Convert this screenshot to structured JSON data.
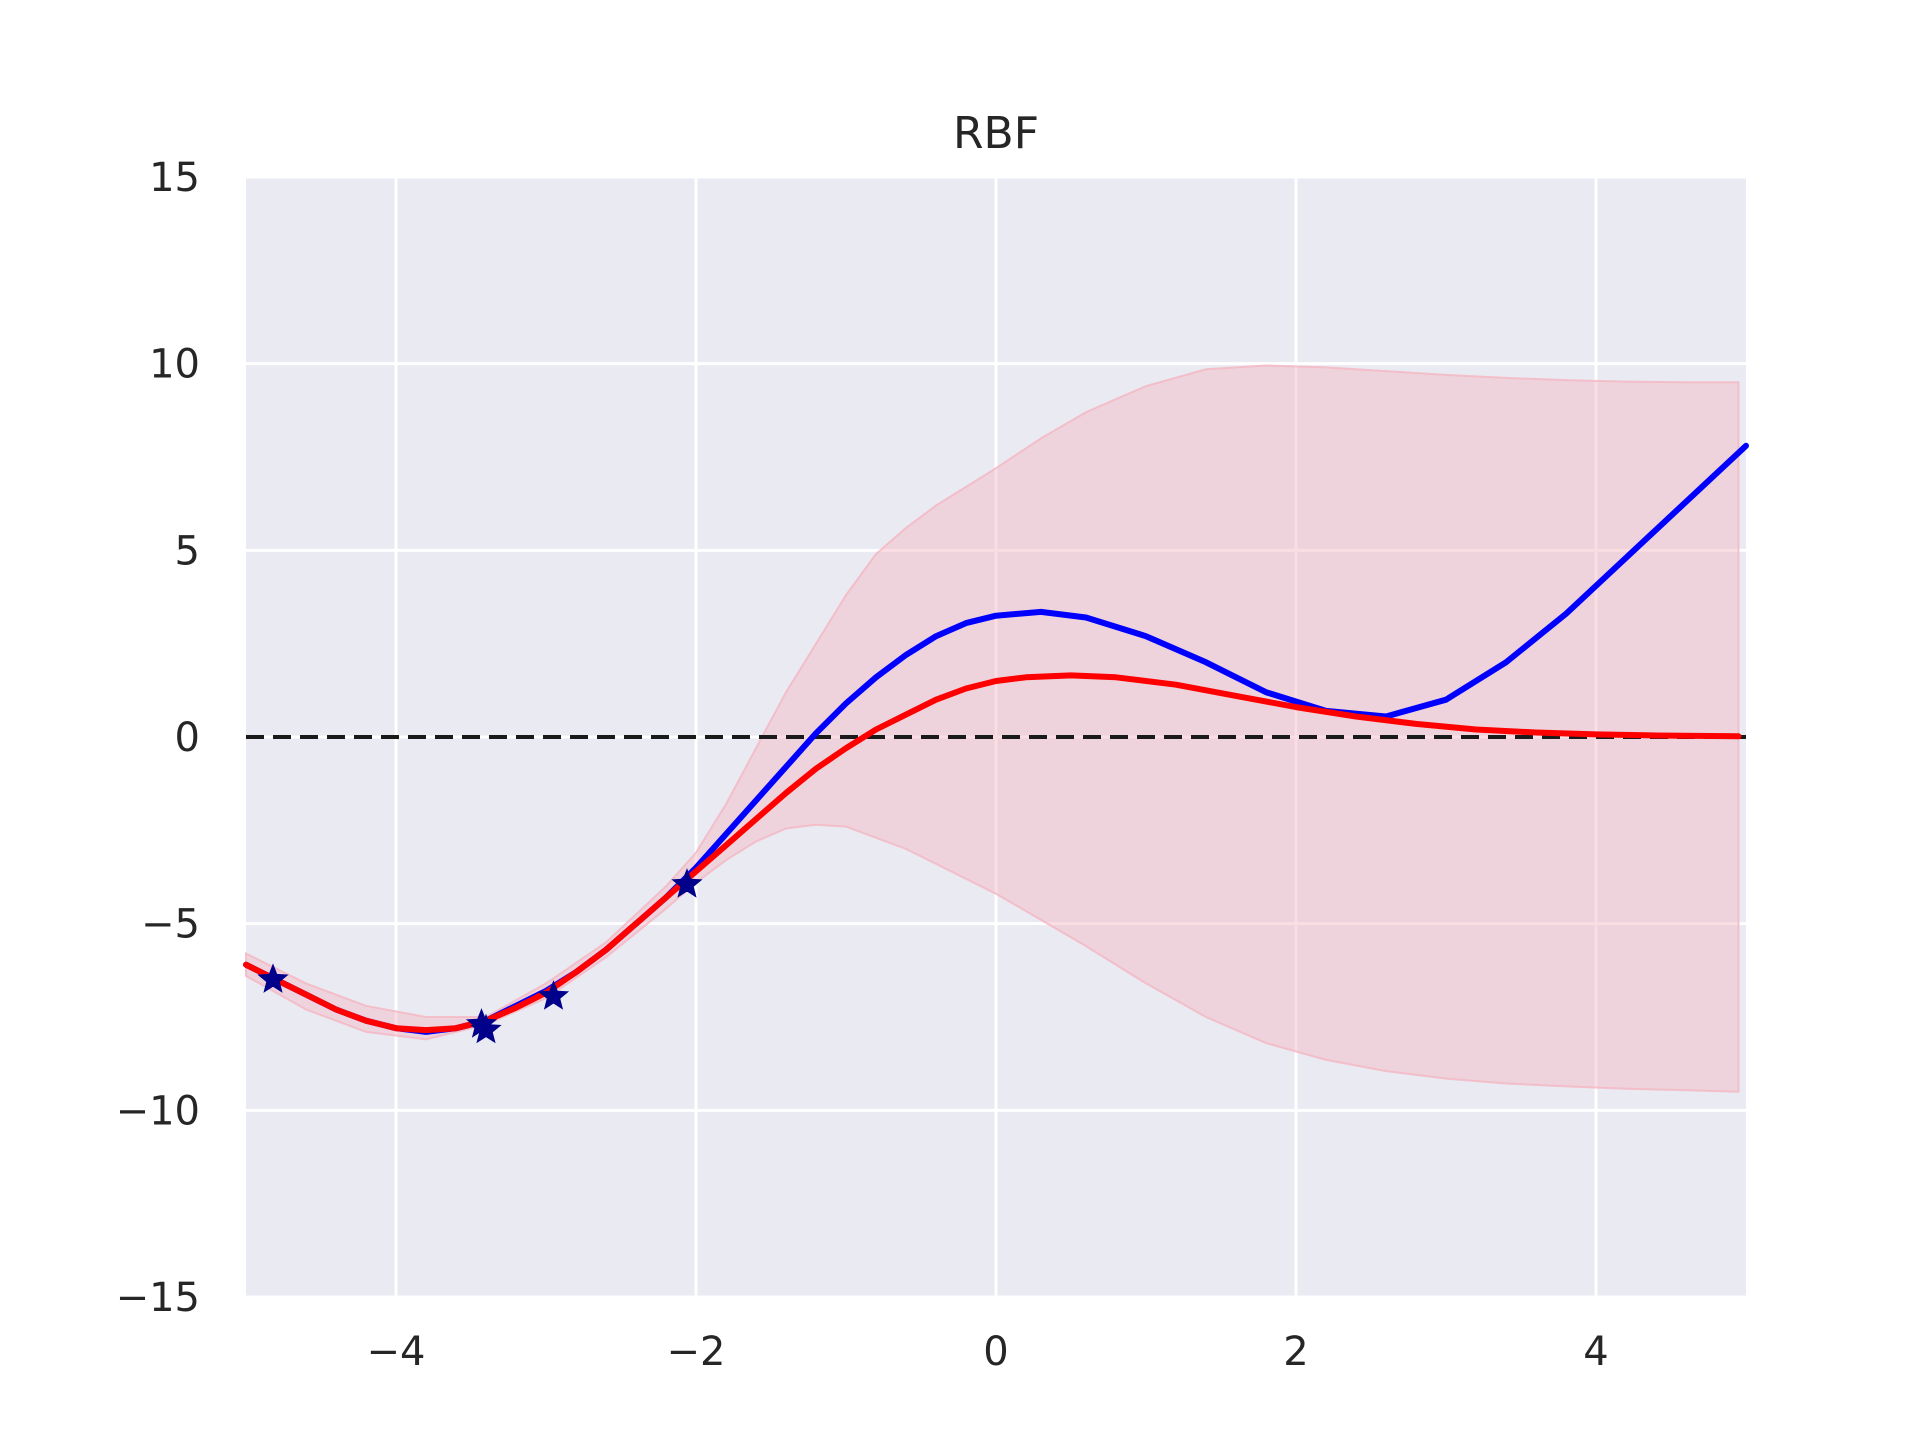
{
  "chart_data": {
    "type": "line",
    "title": "RBF",
    "xlabel": "",
    "ylabel": "",
    "xlim": [
      -5,
      5
    ],
    "ylim": [
      -15,
      15
    ],
    "xticks": [
      -4,
      -2,
      0,
      2,
      4
    ],
    "xtick_labels": [
      "−4",
      "−2",
      "0",
      "2",
      "4"
    ],
    "yticks": [
      15,
      10,
      5,
      0,
      -5,
      -10,
      -15
    ],
    "ytick_labels": [
      "15",
      "10",
      "5",
      "0",
      "−5",
      "−10",
      "−15"
    ],
    "grid": true,
    "background_color": "#EAEAF2",
    "reference_line": {
      "y": 0,
      "style": "dashed",
      "color": "#1a1a1a"
    },
    "series": [
      {
        "kind": "line",
        "color": "#0000FF",
        "x": [
          -5.0,
          -4.8,
          -4.6,
          -4.4,
          -4.2,
          -4.0,
          -3.8,
          -3.6,
          -3.4,
          -3.2,
          -3.0,
          -2.8,
          -2.6,
          -2.4,
          -2.2,
          -2.0,
          -1.8,
          -1.6,
          -1.4,
          -1.2,
          -1.0,
          -0.8,
          -0.6,
          -0.4,
          -0.2,
          0.0,
          0.3,
          0.6,
          1.0,
          1.4,
          1.8,
          2.2,
          2.6,
          3.0,
          3.4,
          3.8,
          4.2,
          4.6,
          5.0
        ],
        "y": [
          -6.1,
          -6.5,
          -6.9,
          -7.3,
          -7.6,
          -7.8,
          -7.9,
          -7.8,
          -7.6,
          -7.2,
          -6.8,
          -6.3,
          -5.7,
          -5.0,
          -4.3,
          -3.5,
          -2.6,
          -1.7,
          -0.8,
          0.1,
          0.9,
          1.6,
          2.2,
          2.7,
          3.05,
          3.25,
          3.35,
          3.2,
          2.7,
          2.0,
          1.2,
          0.7,
          0.55,
          1.0,
          2.0,
          3.3,
          4.8,
          6.3,
          7.8
        ]
      },
      {
        "kind": "mean",
        "color": "#FF0000",
        "x": [
          -5.0,
          -4.8,
          -4.6,
          -4.4,
          -4.2,
          -4.0,
          -3.8,
          -3.6,
          -3.4,
          -3.2,
          -3.0,
          -2.8,
          -2.6,
          -2.4,
          -2.2,
          -2.0,
          -1.8,
          -1.6,
          -1.4,
          -1.2,
          -1.0,
          -0.8,
          -0.6,
          -0.4,
          -0.2,
          0.0,
          0.2,
          0.5,
          0.8,
          1.2,
          1.6,
          2.0,
          2.4,
          2.8,
          3.2,
          3.6,
          4.0,
          4.4,
          4.95
        ],
        "y": [
          -6.1,
          -6.5,
          -6.9,
          -7.3,
          -7.6,
          -7.8,
          -7.85,
          -7.8,
          -7.6,
          -7.25,
          -6.85,
          -6.3,
          -5.7,
          -5.0,
          -4.3,
          -3.6,
          -2.9,
          -2.2,
          -1.5,
          -0.85,
          -0.3,
          0.2,
          0.6,
          1.0,
          1.3,
          1.5,
          1.6,
          1.65,
          1.6,
          1.4,
          1.1,
          0.8,
          0.55,
          0.35,
          0.2,
          0.12,
          0.07,
          0.04,
          0.02
        ]
      },
      {
        "kind": "band",
        "color": "#F4B6C2",
        "x": [
          -5.0,
          -4.6,
          -4.2,
          -3.8,
          -3.4,
          -3.0,
          -2.6,
          -2.2,
          -2.0,
          -1.8,
          -1.6,
          -1.4,
          -1.2,
          -1.0,
          -0.8,
          -0.6,
          -0.4,
          -0.2,
          0.0,
          0.3,
          0.6,
          1.0,
          1.4,
          1.8,
          2.2,
          2.6,
          3.0,
          3.4,
          3.8,
          4.2,
          4.6,
          4.95
        ],
        "upper": [
          -5.8,
          -6.6,
          -7.2,
          -7.5,
          -7.5,
          -6.6,
          -5.5,
          -4.0,
          -3.1,
          -1.8,
          -0.3,
          1.2,
          2.5,
          3.8,
          4.9,
          5.6,
          6.2,
          6.7,
          7.2,
          8.0,
          8.7,
          9.4,
          9.85,
          9.95,
          9.9,
          9.8,
          9.7,
          9.62,
          9.56,
          9.52,
          9.5,
          9.5
        ],
        "lower": [
          -6.4,
          -7.3,
          -7.9,
          -8.1,
          -7.7,
          -7.0,
          -5.9,
          -4.6,
          -3.9,
          -3.3,
          -2.8,
          -2.45,
          -2.35,
          -2.4,
          -2.7,
          -3.0,
          -3.4,
          -3.8,
          -4.2,
          -4.9,
          -5.6,
          -6.6,
          -7.5,
          -8.2,
          -8.65,
          -8.95,
          -9.15,
          -9.28,
          -9.36,
          -9.42,
          -9.46,
          -9.5
        ]
      }
    ],
    "markers": {
      "shape": "star",
      "color": "#00008B",
      "x": [
        -4.82,
        -3.43,
        -3.4,
        -2.95,
        -2.06
      ],
      "y": [
        -6.5,
        -7.7,
        -7.85,
        -6.95,
        -3.95
      ]
    }
  }
}
